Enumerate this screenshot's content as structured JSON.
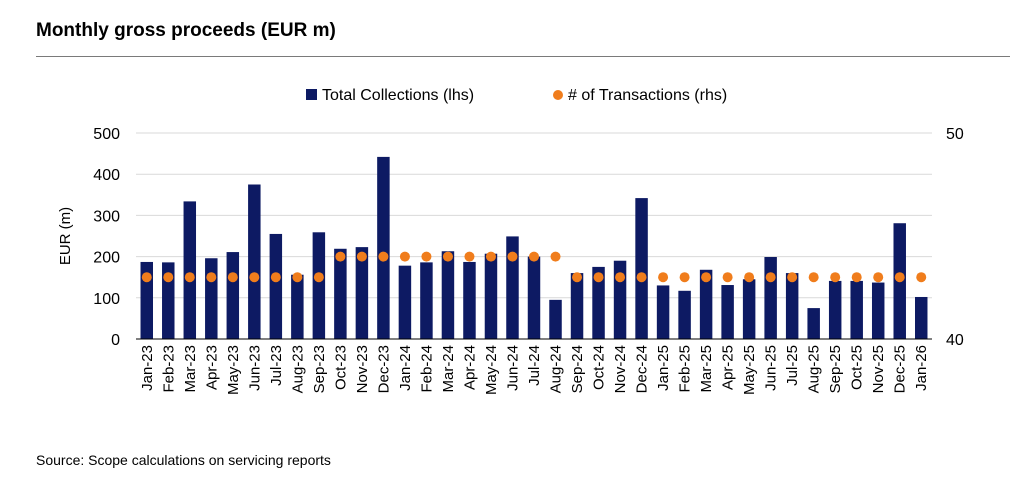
{
  "header": {
    "title": "Monthly gross proceeds (EUR m)",
    "source": "Source: Scope calculations on servicing reports"
  },
  "colors": {
    "bar": "#0d1a63",
    "dot": "#f07d1c",
    "grid": "#d9d9d9"
  },
  "chart_data": {
    "type": "bar",
    "title": "Monthly gross proceeds (EUR m)",
    "ylabel": "EUR (m)",
    "ylim": [
      0,
      500
    ],
    "yticks": [
      0,
      100,
      200,
      300,
      400,
      500
    ],
    "y2lim": [
      40,
      50
    ],
    "y2ticks": [
      40,
      50
    ],
    "grid": true,
    "legend_position": "top",
    "categories": [
      "Jan-23",
      "Feb-23",
      "Mar-23",
      "Apr-23",
      "May-23",
      "Jun-23",
      "Jul-23",
      "Aug-23",
      "Sep-23",
      "Oct-23",
      "Nov-23",
      "Dec-23",
      "Jan-24",
      "Feb-24",
      "Mar-24",
      "Apr-24",
      "May-24",
      "Jun-24",
      "Jul-24",
      "Aug-24",
      "Sep-24",
      "Oct-24",
      "Nov-24",
      "Dec-24",
      "Jan-25",
      "Feb-25",
      "Mar-25",
      "Apr-25",
      "May-25",
      "Jun-25",
      "Jul-25",
      "Aug-25",
      "Sep-25",
      "Oct-25",
      "Nov-25",
      "Dec-25",
      "Jan-26"
    ],
    "series": [
      {
        "name": "Total Collections (lhs)",
        "type": "bar",
        "axis": "left",
        "values": [
          187,
          186,
          334,
          196,
          211,
          375,
          255,
          156,
          259,
          219,
          223,
          442,
          178,
          186,
          213,
          187,
          207,
          249,
          200,
          95,
          160,
          175,
          190,
          342,
          130,
          117,
          168,
          131,
          145,
          199,
          160,
          75,
          141,
          141,
          137,
          281,
          102
        ]
      },
      {
        "name": "# of Transactions (rhs)",
        "type": "scatter",
        "axis": "right",
        "values": [
          43,
          43,
          43,
          43,
          43,
          43,
          43,
          43,
          43,
          44,
          44,
          44,
          44,
          44,
          44,
          44,
          44,
          44,
          44,
          44,
          43,
          43,
          43,
          43,
          43,
          43,
          43,
          43,
          43,
          43,
          43,
          43,
          43,
          43,
          43,
          43,
          43
        ]
      }
    ]
  }
}
